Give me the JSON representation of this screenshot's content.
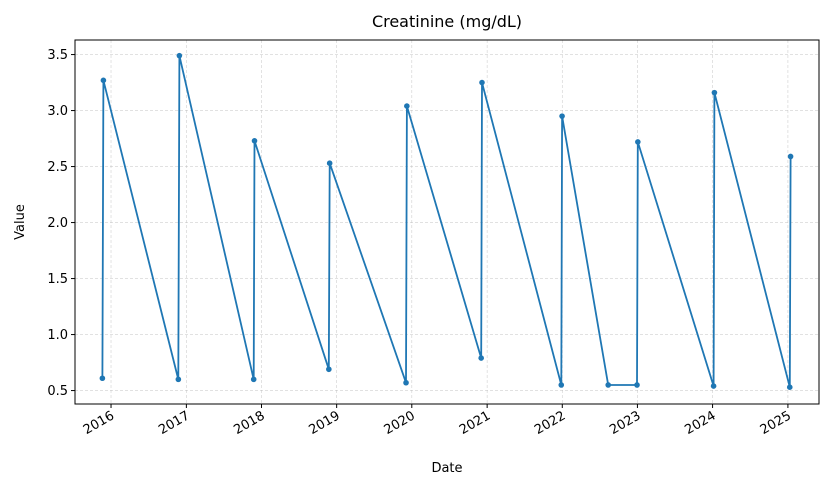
{
  "chart_data": {
    "type": "line",
    "title": "Creatinine (mg/dL)",
    "xlabel": "Date",
    "ylabel": "Value",
    "x_axis": "date",
    "xlim": [
      "2015-07-10",
      "2025-06-01"
    ],
    "ylim": [
      0.38,
      3.63
    ],
    "grid": true,
    "x_ticks": [
      "2016",
      "2017",
      "2018",
      "2019",
      "2020",
      "2021",
      "2022",
      "2023",
      "2024",
      "2025"
    ],
    "y_ticks": [
      "0.5",
      "1.0",
      "1.5",
      "2.0",
      "2.5",
      "3.0",
      "3.5"
    ],
    "series": [
      {
        "color": "#1f77b4",
        "marker": "circle",
        "points": [
          {
            "x": "2015-11-20",
            "y": 0.61
          },
          {
            "x": "2015-11-25",
            "y": 3.27
          },
          {
            "x": "2016-11-23",
            "y": 0.6
          },
          {
            "x": "2016-11-28",
            "y": 3.49
          },
          {
            "x": "2017-11-24",
            "y": 0.6
          },
          {
            "x": "2017-11-28",
            "y": 2.73
          },
          {
            "x": "2018-11-24",
            "y": 0.69
          },
          {
            "x": "2018-11-28",
            "y": 2.53
          },
          {
            "x": "2019-12-04",
            "y": 0.57
          },
          {
            "x": "2019-12-08",
            "y": 3.04
          },
          {
            "x": "2020-12-03",
            "y": 0.79
          },
          {
            "x": "2020-12-07",
            "y": 3.25
          },
          {
            "x": "2021-12-27",
            "y": 0.55
          },
          {
            "x": "2021-12-31",
            "y": 2.95
          },
          {
            "x": "2022-08-12",
            "y": 0.55
          },
          {
            "x": "2022-12-30",
            "y": 0.55
          },
          {
            "x": "2023-01-03",
            "y": 2.72
          },
          {
            "x": "2024-01-06",
            "y": 0.54
          },
          {
            "x": "2024-01-10",
            "y": 3.16
          },
          {
            "x": "2025-01-10",
            "y": 0.53
          },
          {
            "x": "2025-01-14",
            "y": 2.59
          }
        ]
      }
    ]
  }
}
